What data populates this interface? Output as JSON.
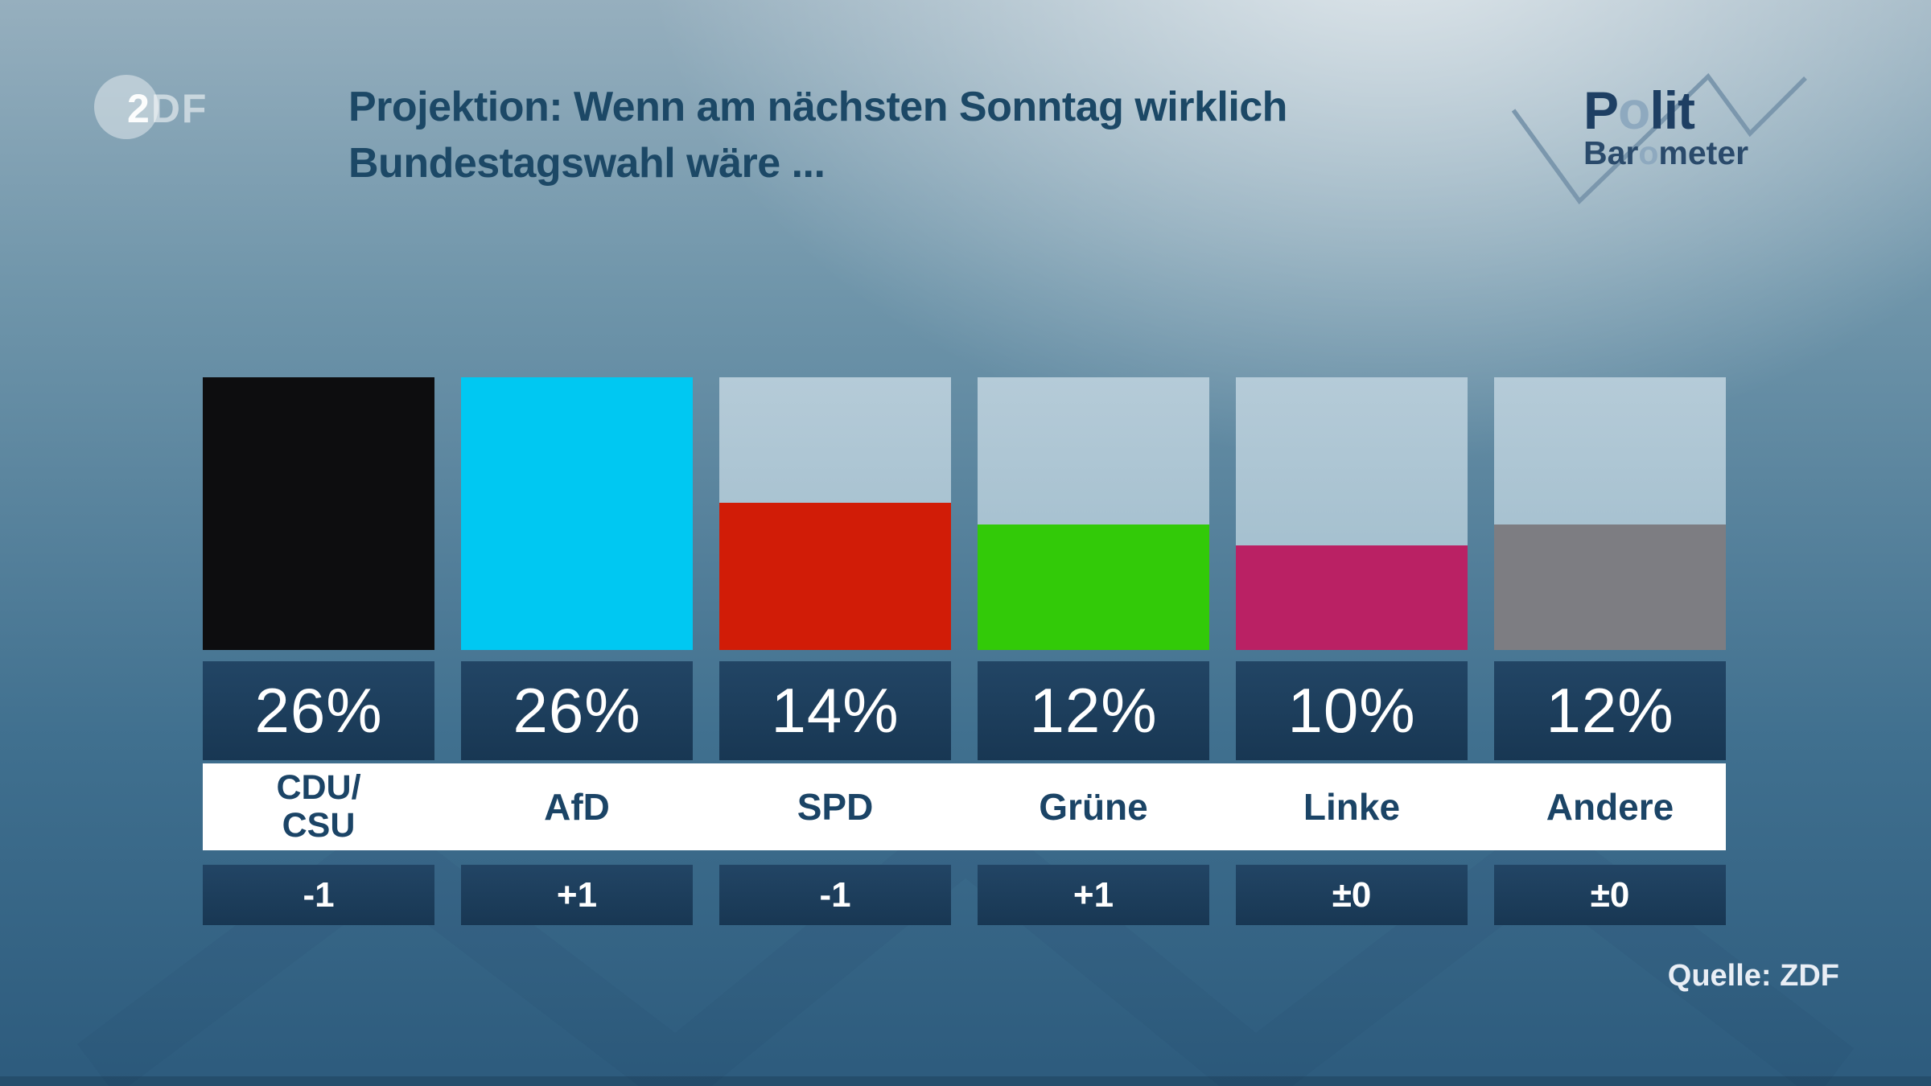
{
  "header": {
    "zdf_logo": {
      "bold_part": "2",
      "light_part": "DF"
    },
    "title_line1": "Projektion: Wenn am nächsten Sonntag wirklich",
    "title_line2": "Bundestagswahl wäre ...",
    "politbarometer": {
      "line1": {
        "pre": "P",
        "light": "o",
        "post": "lit"
      },
      "line2": {
        "pre": "Bar",
        "light": "o",
        "post": "meter"
      }
    }
  },
  "footer": {
    "source": "Quelle: ZDF"
  },
  "colors": {
    "title": "#1c4866",
    "label_text": "#1b4466",
    "box_navy_top": "#224565",
    "box_navy_bottom": "#183753",
    "polit_dark": "#1e3f63",
    "polit_dark2": "#2a4a6b",
    "polit_light": "#8ea9bf",
    "zigzag_line": "#7b97ad",
    "source_text": "#e9eef5"
  },
  "chart_data": {
    "type": "bar",
    "title": "Projektion: Wenn am nächsten Sonntag wirklich Bundestagswahl wäre ...",
    "unit": "%",
    "scale_max": 26,
    "grid": false,
    "legend": false,
    "categories": [
      "CDU/CSU",
      "AfD",
      "SPD",
      "Grüne",
      "Linke",
      "Andere"
    ],
    "values": [
      26,
      26,
      14,
      12,
      10,
      12
    ],
    "changes": [
      "-1",
      "+1",
      "-1",
      "+1",
      "±0",
      "±0"
    ],
    "parties": [
      {
        "name": "CDU/CSU",
        "lines": [
          "CDU/",
          "CSU"
        ],
        "value": 26,
        "value_label": "26%",
        "change": "-1",
        "color": "#0d0d0f"
      },
      {
        "name": "AfD",
        "lines": [
          "AfD"
        ],
        "value": 26,
        "value_label": "26%",
        "change": "+1",
        "color": "#00c8f2"
      },
      {
        "name": "SPD",
        "lines": [
          "SPD"
        ],
        "value": 14,
        "value_label": "14%",
        "change": "-1",
        "color": "#d11c07"
      },
      {
        "name": "Grüne",
        "lines": [
          "Grüne"
        ],
        "value": 12,
        "value_label": "12%",
        "change": "+1",
        "color": "#32ca08"
      },
      {
        "name": "Linke",
        "lines": [
          "Linke"
        ],
        "value": 10,
        "value_label": "10%",
        "change": "±0",
        "color": "#ba2164"
      },
      {
        "name": "Andere",
        "lines": [
          "Andere"
        ],
        "value": 12,
        "value_label": "12%",
        "change": "±0",
        "color": "#7d7d82"
      }
    ]
  }
}
